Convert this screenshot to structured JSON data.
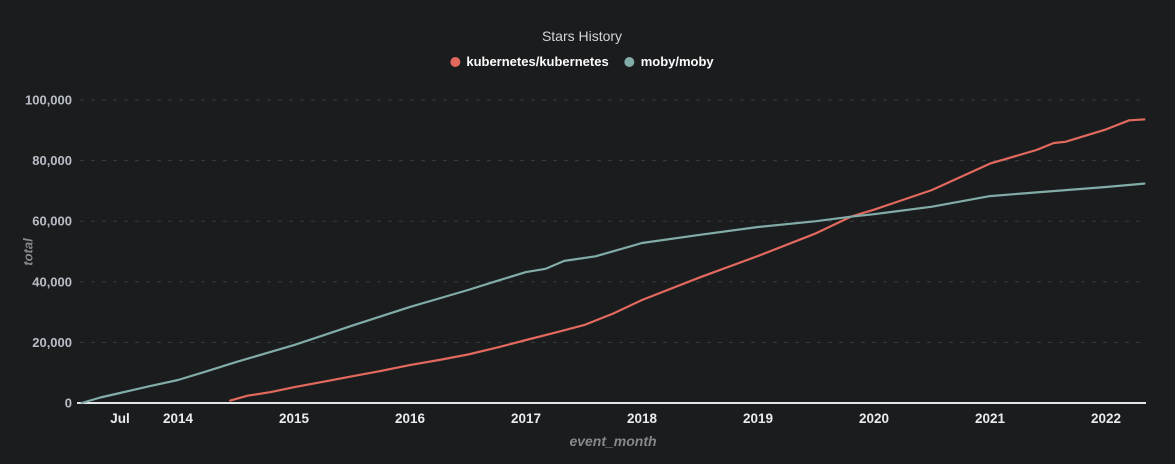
{
  "chart_data": {
    "type": "line",
    "title": "Stars History",
    "xlabel": "event_month",
    "ylabel": "total",
    "legend_position": "top-center",
    "grid": "horizontal-dashed",
    "x_unit": "decimal_year",
    "xlim": [
      2013.155,
      2022.336
    ],
    "ylim": [
      0,
      100000
    ],
    "x_ticks": [
      {
        "label": "Jul",
        "x": 2013.5
      },
      {
        "label": "2014",
        "x": 2014
      },
      {
        "label": "2015",
        "x": 2015
      },
      {
        "label": "2016",
        "x": 2016
      },
      {
        "label": "2017",
        "x": 2017
      },
      {
        "label": "2018",
        "x": 2018
      },
      {
        "label": "2019",
        "x": 2019
      },
      {
        "label": "2020",
        "x": 2020
      },
      {
        "label": "2021",
        "x": 2021
      },
      {
        "label": "2022",
        "x": 2022
      }
    ],
    "y_ticks": [
      {
        "label": "0",
        "value": 0
      },
      {
        "label": "20,000",
        "value": 20000
      },
      {
        "label": "40,000",
        "value": 40000
      },
      {
        "label": "60,000",
        "value": 60000
      },
      {
        "label": "80,000",
        "value": 80000
      },
      {
        "label": "100,000",
        "value": 100000
      }
    ],
    "series": [
      {
        "name": "kubernetes/kubernetes",
        "color": "#e2695e",
        "points": [
          [
            2014.45,
            800
          ],
          [
            2014.6,
            2400
          ],
          [
            2014.8,
            3600
          ],
          [
            2015.0,
            5200
          ],
          [
            2015.25,
            7000
          ],
          [
            2015.5,
            8800
          ],
          [
            2015.75,
            10600
          ],
          [
            2016.0,
            12500
          ],
          [
            2016.25,
            14200
          ],
          [
            2016.5,
            16000
          ],
          [
            2016.75,
            18300
          ],
          [
            2017.0,
            20800
          ],
          [
            2017.25,
            23200
          ],
          [
            2017.5,
            25700
          ],
          [
            2017.75,
            29500
          ],
          [
            2018.0,
            34000
          ],
          [
            2018.5,
            41500
          ],
          [
            2019.0,
            48500
          ],
          [
            2019.5,
            56000
          ],
          [
            2019.8,
            61500
          ],
          [
            2020.0,
            63800
          ],
          [
            2020.5,
            70300
          ],
          [
            2021.0,
            79000
          ],
          [
            2021.4,
            83500
          ],
          [
            2021.55,
            85800
          ],
          [
            2021.65,
            86200
          ],
          [
            2022.0,
            90300
          ],
          [
            2022.2,
            93300
          ],
          [
            2022.33,
            93600
          ]
        ]
      },
      {
        "name": "moby/moby",
        "color": "#82aca8",
        "points": [
          [
            2013.17,
            0
          ],
          [
            2013.33,
            1800
          ],
          [
            2013.5,
            3300
          ],
          [
            2013.75,
            5500
          ],
          [
            2014.0,
            7600
          ],
          [
            2014.25,
            10500
          ],
          [
            2014.5,
            13500
          ],
          [
            2014.75,
            16300
          ],
          [
            2015.0,
            19100
          ],
          [
            2015.25,
            22300
          ],
          [
            2015.5,
            25500
          ],
          [
            2015.75,
            28600
          ],
          [
            2016.0,
            31700
          ],
          [
            2016.25,
            34500
          ],
          [
            2016.5,
            37300
          ],
          [
            2016.75,
            40300
          ],
          [
            2017.0,
            43200
          ],
          [
            2017.17,
            44300
          ],
          [
            2017.33,
            46900
          ],
          [
            2017.6,
            48400
          ],
          [
            2018.0,
            52800
          ],
          [
            2018.5,
            55500
          ],
          [
            2019.0,
            58100
          ],
          [
            2019.5,
            60000
          ],
          [
            2019.8,
            61500
          ],
          [
            2020.0,
            62300
          ],
          [
            2020.5,
            64800
          ],
          [
            2021.0,
            68300
          ],
          [
            2021.5,
            69800
          ],
          [
            2022.0,
            71300
          ],
          [
            2022.33,
            72400
          ]
        ]
      }
    ]
  },
  "colors": {
    "background": "#1b1c1e",
    "axis_line": "#e3e5e8",
    "gridline": "#383b40",
    "y_tick_label": "#b9bec6",
    "x_tick_label": "#e9ebee",
    "axis_title": "#85888d",
    "chart_title": "#d3d4d6",
    "legend_text": "#fdfdfd"
  }
}
